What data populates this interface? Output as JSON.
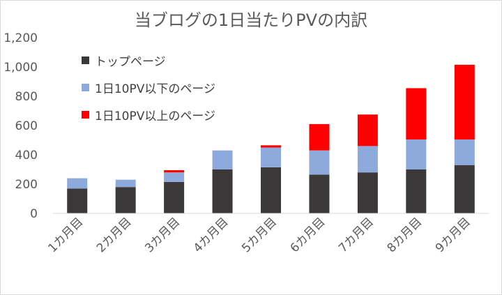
{
  "chart_data": {
    "type": "bar",
    "stacked": true,
    "title": "当ブログの1日当たりPVの内訳",
    "categories": [
      "1カ月目",
      "2カ月目",
      "3カ月目",
      "4カ月目",
      "5カ月目",
      "6カ月目",
      "7カ月目",
      "8カ月目",
      "9カ月目"
    ],
    "series": [
      {
        "name": "トップページ",
        "color": "#3a3838",
        "values": [
          170,
          180,
          215,
          300,
          315,
          265,
          280,
          300,
          330
        ]
      },
      {
        "name": "1日10PV以下のページ",
        "color": "#8eaadc",
        "values": [
          70,
          50,
          65,
          130,
          135,
          165,
          180,
          205,
          175
        ]
      },
      {
        "name": "1日10PV以上のページ",
        "color": "#ff0000",
        "values": [
          0,
          0,
          15,
          0,
          15,
          180,
          215,
          350,
          510
        ]
      }
    ],
    "ylim": [
      0,
      1200
    ],
    "yticks": [
      "0",
      "200",
      "400",
      "600",
      "800",
      "1,000",
      "1,200"
    ],
    "grid": false,
    "legend_position": "top-left"
  }
}
